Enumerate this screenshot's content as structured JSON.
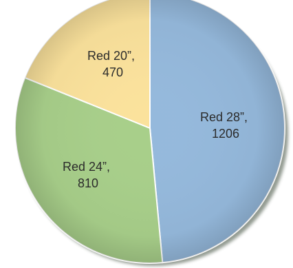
{
  "chart_data": {
    "type": "pie",
    "slices": [
      {
        "name": "Red 28”",
        "value": 1206,
        "label_line1": "Red 28”,",
        "label_line2": "1206",
        "color": "#95b9dc"
      },
      {
        "name": "Red 24”",
        "value": 810,
        "label_line1": "Red 24”,",
        "label_line2": "810",
        "color": "#a8cf8a"
      },
      {
        "name": "Red 20”",
        "value": 470,
        "label_line1": "Red 20”,",
        "label_line2": "470",
        "color": "#fbe29c"
      }
    ],
    "legend": "none",
    "style": "3d-shaded"
  }
}
